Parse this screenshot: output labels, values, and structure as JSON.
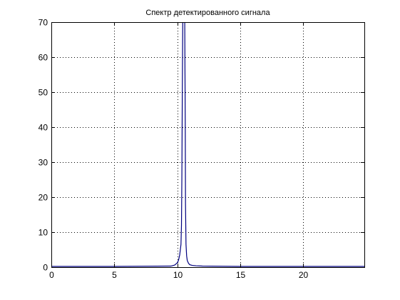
{
  "chart_data": {
    "type": "line",
    "title": "Спектр детектированного сигнала",
    "xlabel": "",
    "ylabel": "",
    "xlim": [
      0,
      24.87
    ],
    "ylim": [
      0,
      70
    ],
    "xticks": [
      0,
      5,
      10,
      15,
      20
    ],
    "yticks": [
      0,
      10,
      20,
      30,
      40,
      50,
      60,
      70
    ],
    "grid": true,
    "legend": "none",
    "series": [
      {
        "color": "#00007f",
        "x": [
          0,
          5,
          9.5,
          9.8,
          10.0,
          10.1,
          10.2,
          10.3,
          10.34,
          10.37,
          10.4,
          10.44,
          10.46,
          10.5,
          10.56,
          10.6,
          10.62,
          10.64,
          10.66,
          10.7,
          10.75,
          10.8,
          10.9,
          11.0,
          11.2,
          11.5,
          12,
          15,
          20,
          24.87
        ],
        "y": [
          0.2,
          0.2,
          0.3,
          0.6,
          1.2,
          1.9,
          3.5,
          6.5,
          12,
          25,
          46,
          70,
          70,
          70,
          70,
          70,
          55,
          41,
          18,
          6.5,
          3.2,
          1.9,
          1.1,
          0.7,
          0.5,
          0.4,
          0.3,
          0.2,
          0.2,
          0.2
        ]
      }
    ]
  }
}
